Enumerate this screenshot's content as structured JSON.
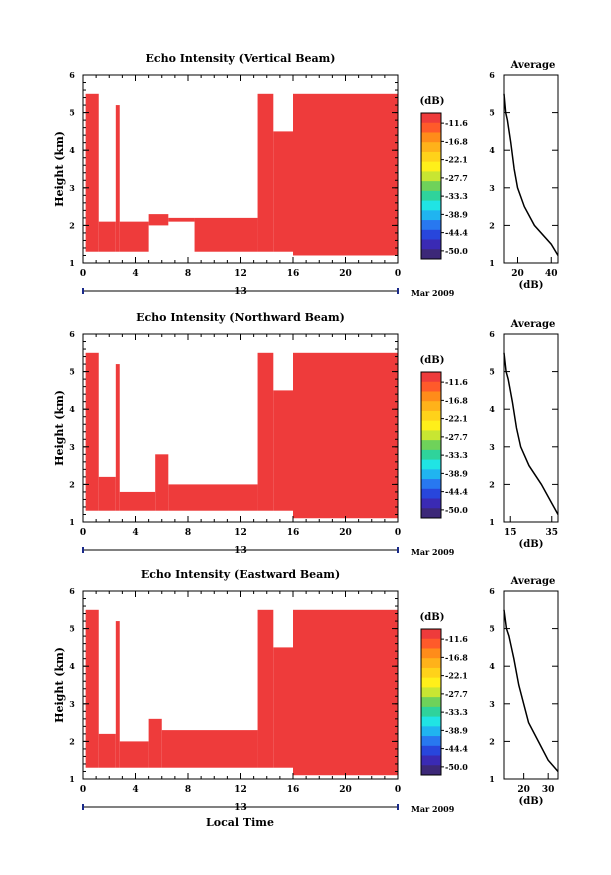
{
  "figure": {
    "date_label": "Mar 2009",
    "day_label": "13",
    "xlabel": "Local Time"
  },
  "colorbar": {
    "unit": "(dB)",
    "levels": [
      "-11.6",
      "-16.8",
      "-22.1",
      "-27.7",
      "-33.3",
      "-38.9",
      "-44.4",
      "-50.0"
    ],
    "colors": [
      "#ee3b3b",
      "#ff5a2a",
      "#ff8c1a",
      "#ffb21a",
      "#ffd21a",
      "#ffef1a",
      "#c8e632",
      "#6fd25a",
      "#2fd39b",
      "#20e4e4",
      "#20b4f0",
      "#2878f0",
      "#2846dc",
      "#3a2ab4",
      "#3c2878"
    ]
  },
  "chart_data": [
    {
      "type": "heatmap",
      "title": "Echo Intensity (Vertical Beam)",
      "ylabel": "Height (km)",
      "xlim": [
        0,
        24
      ],
      "ylim": [
        1,
        6
      ],
      "xticks": [
        "0",
        "4",
        "8",
        "12",
        "16",
        "20",
        "0"
      ],
      "yticks": [
        "1",
        "2",
        "3",
        "4",
        "5",
        "6"
      ],
      "fill_color": "#ee3b3b",
      "echo_cells": [
        {
          "x": [
            0.2,
            1.2
          ],
          "y": [
            1.3,
            5.5
          ]
        },
        {
          "x": [
            1.2,
            2.5
          ],
          "y": [
            1.3,
            2.1
          ]
        },
        {
          "x": [
            2.5,
            2.8
          ],
          "y": [
            1.3,
            5.2
          ]
        },
        {
          "x": [
            2.8,
            5.0
          ],
          "y": [
            1.3,
            2.1
          ]
        },
        {
          "x": [
            5.0,
            6.5
          ],
          "y": [
            2.0,
            2.3
          ]
        },
        {
          "x": [
            6.5,
            8.5
          ],
          "y": [
            2.1,
            2.2
          ]
        },
        {
          "x": [
            8.5,
            13.3
          ],
          "y": [
            1.3,
            2.2
          ]
        },
        {
          "x": [
            13.3,
            14.5
          ],
          "y": [
            1.3,
            5.5
          ]
        },
        {
          "x": [
            14.5,
            16.0
          ],
          "y": [
            1.3,
            4.5
          ]
        },
        {
          "x": [
            16.0,
            24.0
          ],
          "y": [
            1.2,
            5.5
          ]
        }
      ],
      "average_profile": {
        "xlabel": "(dB)",
        "xlim": [
          12,
          44
        ],
        "xticks": [
          "20",
          "40"
        ],
        "yticks": [
          "1",
          "2",
          "3",
          "4",
          "5",
          "6"
        ],
        "x": [
          12,
          13,
          14,
          15,
          16,
          18,
          20,
          24,
          30,
          40,
          44
        ],
        "y": [
          5.5,
          5.0,
          4.8,
          4.5,
          4.2,
          3.5,
          3.0,
          2.5,
          2.0,
          1.5,
          1.2
        ]
      }
    },
    {
      "type": "heatmap",
      "title": "Echo Intensity (Northward Beam)",
      "ylabel": "Height (km)",
      "xlim": [
        0,
        24
      ],
      "ylim": [
        1,
        6
      ],
      "xticks": [
        "0",
        "4",
        "8",
        "12",
        "16",
        "20",
        "0"
      ],
      "yticks": [
        "1",
        "2",
        "3",
        "4",
        "5",
        "6"
      ],
      "fill_color": "#ee3b3b",
      "echo_cells": [
        {
          "x": [
            0.2,
            1.2
          ],
          "y": [
            1.3,
            5.5
          ]
        },
        {
          "x": [
            1.2,
            2.5
          ],
          "y": [
            1.3,
            2.2
          ]
        },
        {
          "x": [
            2.5,
            2.8
          ],
          "y": [
            1.3,
            5.2
          ]
        },
        {
          "x": [
            2.8,
            5.5
          ],
          "y": [
            1.3,
            1.8
          ]
        },
        {
          "x": [
            5.5,
            6.5
          ],
          "y": [
            1.3,
            2.8
          ]
        },
        {
          "x": [
            6.5,
            13.3
          ],
          "y": [
            1.3,
            2.0
          ]
        },
        {
          "x": [
            13.3,
            14.5
          ],
          "y": [
            1.3,
            5.5
          ]
        },
        {
          "x": [
            14.5,
            16.0
          ],
          "y": [
            1.3,
            4.5
          ]
        },
        {
          "x": [
            16.0,
            24.0
          ],
          "y": [
            1.1,
            5.5
          ]
        }
      ],
      "average_profile": {
        "xlabel": "(dB)",
        "xlim": [
          12,
          38
        ],
        "xticks": [
          "15",
          "35"
        ],
        "yticks": [
          "1",
          "2",
          "3",
          "4",
          "5",
          "6"
        ],
        "x": [
          12,
          13,
          14,
          15,
          16,
          18,
          20,
          24,
          30,
          35,
          38
        ],
        "y": [
          5.5,
          5.0,
          4.8,
          4.5,
          4.2,
          3.5,
          3.0,
          2.5,
          2.0,
          1.5,
          1.2
        ]
      }
    },
    {
      "type": "heatmap",
      "title": "Echo Intensity (Eastward Beam)",
      "ylabel": "Height (km)",
      "xlim": [
        0,
        24
      ],
      "ylim": [
        1,
        6
      ],
      "xticks": [
        "0",
        "4",
        "8",
        "12",
        "16",
        "20",
        "0"
      ],
      "yticks": [
        "1",
        "2",
        "3",
        "4",
        "5",
        "6"
      ],
      "fill_color": "#ee3b3b",
      "echo_cells": [
        {
          "x": [
            0.2,
            1.2
          ],
          "y": [
            1.3,
            5.5
          ]
        },
        {
          "x": [
            1.2,
            2.5
          ],
          "y": [
            1.3,
            2.2
          ]
        },
        {
          "x": [
            2.5,
            2.8
          ],
          "y": [
            1.3,
            5.2
          ]
        },
        {
          "x": [
            2.8,
            5.0
          ],
          "y": [
            1.3,
            2.0
          ]
        },
        {
          "x": [
            5.0,
            6.0
          ],
          "y": [
            1.3,
            2.6
          ]
        },
        {
          "x": [
            6.0,
            13.3
          ],
          "y": [
            1.3,
            2.3
          ]
        },
        {
          "x": [
            13.3,
            14.5
          ],
          "y": [
            1.3,
            5.5
          ]
        },
        {
          "x": [
            14.5,
            16.0
          ],
          "y": [
            1.3,
            4.5
          ]
        },
        {
          "x": [
            16.0,
            24.0
          ],
          "y": [
            1.1,
            5.5
          ]
        }
      ],
      "average_profile": {
        "xlabel": "(dB)",
        "xlim": [
          12,
          34
        ],
        "xticks": [
          "20",
          "30"
        ],
        "yticks": [
          "1",
          "2",
          "3",
          "4",
          "5",
          "6"
        ],
        "x": [
          12,
          13,
          14,
          15,
          16,
          18,
          20,
          22,
          26,
          30,
          34
        ],
        "y": [
          5.5,
          5.0,
          4.8,
          4.5,
          4.2,
          3.5,
          3.0,
          2.5,
          2.0,
          1.5,
          1.2
        ]
      }
    }
  ]
}
